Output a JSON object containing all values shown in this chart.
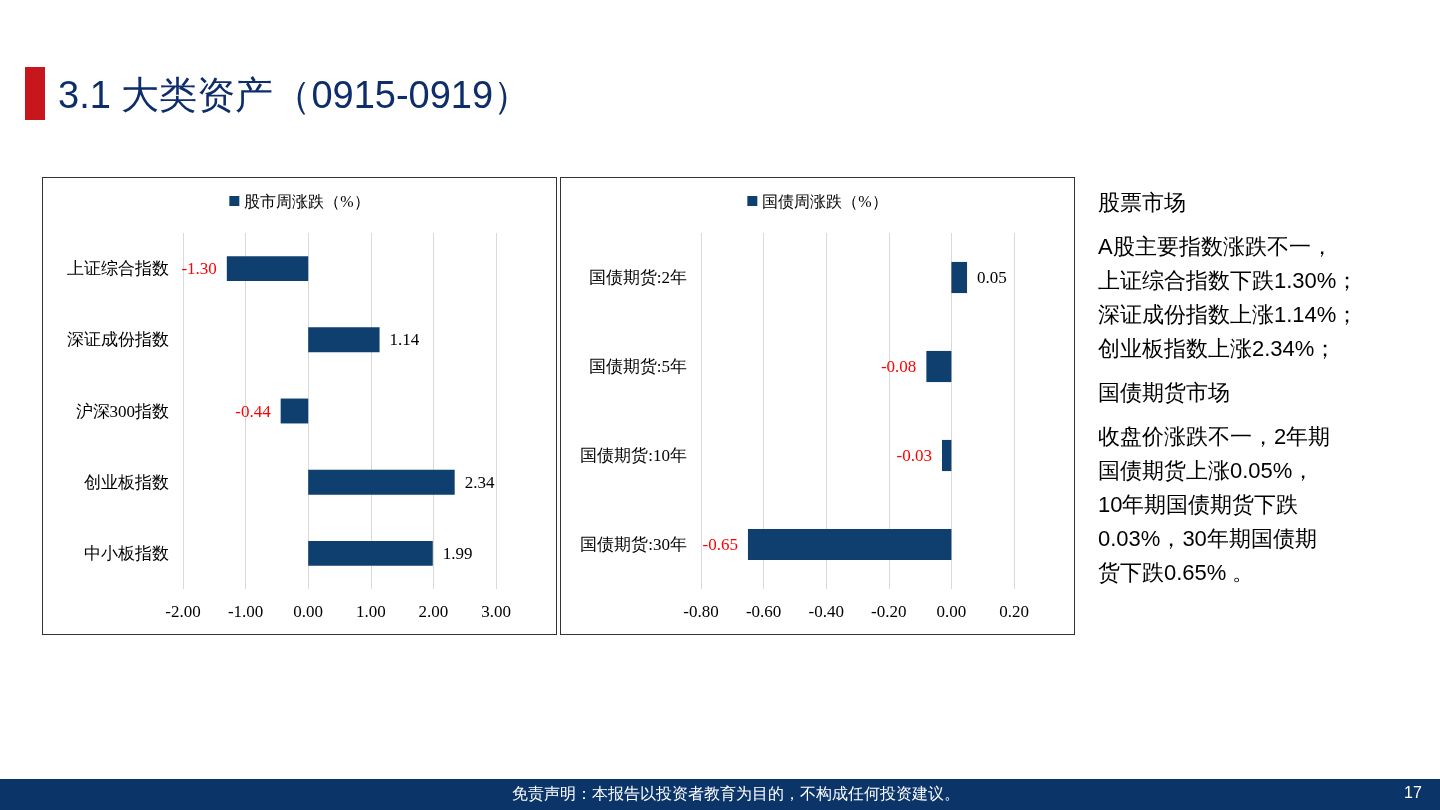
{
  "chart_data": [
    {
      "type": "bar",
      "orientation": "horizontal",
      "categories": [
        "上证综合指数",
        "深证成份指数",
        "沪深300指数",
        "创业板指数",
        "中小板指数"
      ],
      "series": [
        {
          "name": "股市周涨跌（%）",
          "color": "#0f3f6e",
          "values": [
            -1.3,
            1.14,
            -0.44,
            2.34,
            1.99
          ],
          "value_labels": [
            "-1.30",
            "1.14",
            "-0.44",
            "2.34",
            "1.99"
          ]
        }
      ],
      "xlim": [
        -2,
        3
      ],
      "xticks": [
        {
          "value": -2,
          "label": "-2.00"
        },
        {
          "value": -1,
          "label": "-1.00"
        },
        {
          "value": 0,
          "label": "0.00"
        },
        {
          "value": 1,
          "label": "1.00"
        },
        {
          "value": 2,
          "label": "2.00"
        },
        {
          "value": 3,
          "label": "3.00"
        }
      ],
      "grid": "x",
      "legend": "top"
    },
    {
      "type": "bar",
      "orientation": "horizontal",
      "categories": [
        "国债期货:2年",
        "国债期货:5年",
        "国债期货:10年",
        "国债期货:30年"
      ],
      "series": [
        {
          "name": "国债周涨跌（%）",
          "color": "#0f3f6e",
          "values": [
            0.05,
            -0.08,
            -0.03,
            -0.65
          ],
          "value_labels": [
            "0.05",
            "-0.08",
            "-0.03",
            "-0.65"
          ]
        }
      ],
      "xlim": [
        -0.8,
        0.2
      ],
      "xticks": [
        {
          "value": -0.8,
          "label": "-0.80"
        },
        {
          "value": -0.6,
          "label": "-0.60"
        },
        {
          "value": -0.4,
          "label": "-0.40"
        },
        {
          "value": -0.2,
          "label": "-0.20"
        },
        {
          "value": 0,
          "label": "0.00"
        },
        {
          "value": 0.2,
          "label": "0.20"
        }
      ],
      "grid": "x",
      "legend": "top"
    },
    {
      "type": "other",
      "title": "3.1 大类资产（0915-0919）",
      "annotations": [
        "股票市场",
        "A股主要指数涨跌不一，",
        "上证综合指数下跌1.30%；",
        "深证成份指数上涨1.14%；",
        "创业板指数上涨2.34%；",
        "国债期货市场",
        "收盘价涨跌不一，2年期",
        "国债期货上涨0.05%，",
        "10年期国债期货下跌",
        "0.03%，30年期国债期",
        "货下跌0.65% 。",
        "免责声明：本报告以投资者教育为目的，不构成任何投资建议。",
        "17"
      ]
    }
  ]
}
